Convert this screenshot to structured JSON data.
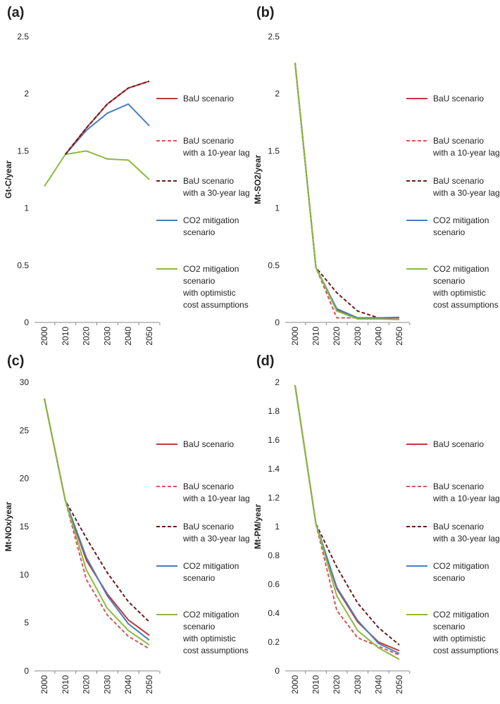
{
  "legend_labels": {
    "bau": [
      "BaU scenario"
    ],
    "lag10": [
      "BaU scenario",
      "with a 10-year lag"
    ],
    "lag30": [
      "BaU scenario",
      "with a 30-year lag"
    ],
    "co2": [
      "CO2 mitigation",
      "scenario"
    ],
    "co2opt": [
      "CO2 mitigation",
      "scenario",
      "with optimistic",
      "cost assumptions"
    ]
  },
  "series_styles": {
    "bau": {
      "color": "#c0393b",
      "dash": "solid"
    },
    "lag10": {
      "color": "#d9535a",
      "dash": "dashed"
    },
    "lag30": {
      "color": "#6b1a1a",
      "dash": "dashed"
    },
    "co2": {
      "color": "#4a7ebb",
      "dash": "solid"
    },
    "co2opt": {
      "color": "#8cba3e",
      "dash": "solid"
    }
  },
  "chart_data": [
    {
      "type": "line",
      "panel_label": "(a)",
      "ylabel": "Gt-C/year",
      "categories": [
        "2000",
        "2010",
        "2020",
        "2030",
        "2040",
        "2050"
      ],
      "ylim": [
        0,
        2.5
      ],
      "yticks": [
        "0",
        "0.5",
        "1",
        "1.5",
        "2",
        "2.5"
      ],
      "series": [
        {
          "key": "co2opt",
          "values": [
            1.19,
            1.47,
            1.5,
            1.43,
            1.42,
            1.25
          ]
        },
        {
          "key": "co2",
          "values": [
            null,
            1.47,
            1.68,
            1.83,
            1.91,
            1.72
          ]
        },
        {
          "key": "bau",
          "values": [
            null,
            1.47,
            1.7,
            1.91,
            2.05,
            2.11
          ]
        },
        {
          "key": "lag10",
          "values": [
            null,
            1.47,
            1.7,
            1.91,
            2.05,
            2.11
          ]
        },
        {
          "key": "lag30",
          "values": [
            null,
            1.47,
            1.7,
            1.91,
            2.05,
            2.11
          ]
        }
      ]
    },
    {
      "type": "line",
      "panel_label": "(b)",
      "ylabel": "Mt-SO2/year",
      "categories": [
        "2000",
        "2010",
        "2020",
        "2030",
        "2040",
        "2050"
      ],
      "ylim": [
        0,
        2.5
      ],
      "yticks": [
        "0",
        "0.5",
        "1",
        "1.5",
        "2",
        "2.5"
      ],
      "series": [
        {
          "key": "lag30",
          "values": [
            2.27,
            0.48,
            0.26,
            0.1,
            0.04,
            0.04
          ]
        },
        {
          "key": "lag10",
          "values": [
            2.27,
            0.48,
            0.04,
            0.04,
            0.04,
            0.04
          ]
        },
        {
          "key": "bau",
          "values": [
            2.27,
            0.48,
            0.11,
            0.04,
            0.04,
            0.04
          ]
        },
        {
          "key": "co2",
          "values": [
            2.27,
            0.48,
            0.12,
            0.04,
            0.04,
            0.045
          ]
        },
        {
          "key": "co2opt",
          "values": [
            2.27,
            0.48,
            0.1,
            0.03,
            0.03,
            0.025
          ]
        }
      ]
    },
    {
      "type": "line",
      "panel_label": "(c)",
      "ylabel": "Mt-NOx/year",
      "categories": [
        "2000",
        "2010",
        "2020",
        "2030",
        "2040",
        "2050"
      ],
      "ylim": [
        0,
        30
      ],
      "yticks": [
        "0",
        "5",
        "10",
        "15",
        "20",
        "25",
        "30"
      ],
      "series": [
        {
          "key": "lag30",
          "values": [
            28.3,
            17.7,
            13.8,
            10.2,
            7.2,
            5.1
          ]
        },
        {
          "key": "lag10",
          "values": [
            28.3,
            17.7,
            9.5,
            5.8,
            3.6,
            2.3
          ]
        },
        {
          "key": "bau",
          "values": [
            28.3,
            17.7,
            11.5,
            8.0,
            5.3,
            3.7
          ]
        },
        {
          "key": "co2",
          "values": [
            28.3,
            17.7,
            11.8,
            7.8,
            4.9,
            3.2
          ]
        },
        {
          "key": "co2opt",
          "values": [
            28.3,
            17.7,
            10.5,
            6.5,
            4.2,
            2.7
          ]
        }
      ]
    },
    {
      "type": "line",
      "panel_label": "(d)",
      "ylabel": "Mt-PM/year",
      "categories": [
        "2000",
        "2010",
        "2020",
        "2030",
        "2040",
        "2050"
      ],
      "ylim": [
        0,
        2
      ],
      "yticks": [
        "0",
        "0.2",
        "0.4",
        "0.6",
        "0.8",
        "1",
        "1.2",
        "1.4",
        "1.6",
        "1.8",
        "2"
      ],
      "series": [
        {
          "key": "lag30",
          "values": [
            1.98,
            1.02,
            0.72,
            0.47,
            0.3,
            0.18
          ]
        },
        {
          "key": "lag10",
          "values": [
            1.98,
            1.02,
            0.42,
            0.23,
            0.17,
            0.11
          ]
        },
        {
          "key": "bau",
          "values": [
            1.98,
            1.02,
            0.57,
            0.34,
            0.2,
            0.14
          ]
        },
        {
          "key": "co2",
          "values": [
            1.98,
            1.02,
            0.58,
            0.35,
            0.19,
            0.12
          ]
        },
        {
          "key": "co2opt",
          "values": [
            1.98,
            1.02,
            0.52,
            0.28,
            0.16,
            0.08
          ]
        }
      ]
    }
  ]
}
